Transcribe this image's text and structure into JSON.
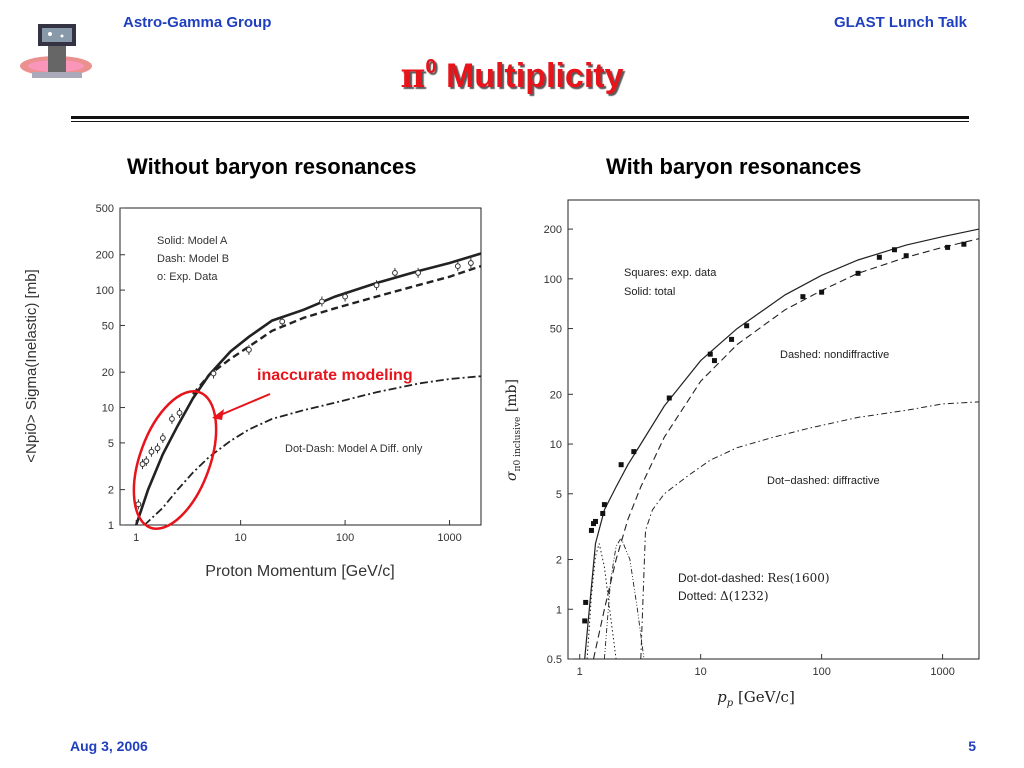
{
  "header": {
    "left": "Astro-Gamma Group",
    "right": "GLAST Lunch Talk"
  },
  "title": {
    "symbol": "π",
    "sup": "0",
    "text": " Multiplicity"
  },
  "subtitles": {
    "left": "Without baryon resonances",
    "right": "With baryon resonances"
  },
  "footer": {
    "date": "Aug 3, 2006",
    "page": "5"
  },
  "annotation": "inaccurate modeling",
  "colors": {
    "header": "#1f3fbf",
    "title": "#e8141b",
    "highlight": "#e8141b"
  },
  "chart_data": [
    {
      "type": "line",
      "xlabel": "Proton Momentum [GeV/c]",
      "ylabel": "<Npi0> Sigma(Inelastic) [mb]",
      "xscale": "log",
      "yscale": "log",
      "xlim": [
        0.7,
        2000
      ],
      "ylim": [
        1,
        500
      ],
      "xticks": [
        1,
        10,
        100,
        1000
      ],
      "xtick_labels": [
        "1",
        "10",
        "100",
        "1000"
      ],
      "yticks": [
        1,
        2,
        5,
        10,
        20,
        50,
        100,
        200,
        500
      ],
      "ytick_labels": [
        "1",
        "2",
        "5",
        "10",
        "20",
        "50",
        "100",
        "200",
        "500"
      ],
      "legend": [
        "Solid: Model A",
        "Dash: Model B",
        "o: Exp. Data"
      ],
      "curve_label": "Dot-Dash: Model A Diff. only",
      "series": [
        {
          "name": "Model A",
          "style": "solid",
          "x": [
            1.0,
            1.3,
            1.8,
            2.5,
            3.5,
            5,
            8,
            12,
            20,
            40,
            80,
            200,
            500,
            1000,
            2000
          ],
          "y": [
            1.0,
            2.0,
            4.0,
            7.0,
            12.0,
            19,
            30,
            40,
            55,
            68,
            88,
            115,
            145,
            170,
            205
          ]
        },
        {
          "name": "Model B",
          "style": "dashed",
          "x": [
            3.5,
            5,
            8,
            12,
            20,
            40,
            80,
            200,
            500,
            1000,
            2000
          ],
          "y": [
            13,
            19,
            26,
            33,
            45,
            58,
            70,
            88,
            110,
            130,
            160
          ]
        },
        {
          "name": "Model A Diff. only",
          "style": "dashdot",
          "x": [
            1.2,
            1.8,
            2.5,
            3.5,
            5,
            8,
            12,
            20,
            40,
            80,
            200,
            500,
            1000,
            2000
          ],
          "y": [
            1.0,
            1.4,
            2.0,
            2.8,
            3.8,
            5.2,
            6.5,
            8.0,
            9.5,
            11.0,
            13.5,
            16.0,
            17.5,
            18.5
          ]
        },
        {
          "name": "Exp. Data",
          "style": "markers",
          "x": [
            1.05,
            1.15,
            1.25,
            1.4,
            1.6,
            1.8,
            2.2,
            2.6,
            5.5,
            12,
            25,
            60,
            100,
            200,
            300,
            500,
            1200,
            1600
          ],
          "y": [
            1.5,
            3.3,
            3.5,
            4.2,
            4.5,
            5.5,
            8.0,
            9.0,
            19.5,
            31.0,
            54.0,
            80.0,
            88.0,
            110.0,
            140.0,
            140.0,
            160.0,
            170.0
          ]
        }
      ]
    },
    {
      "type": "line",
      "xlabel_main": "p",
      "xlabel_sub": "p",
      "xlabel_unit": " [GeV/c]",
      "ylabel_main": "σ",
      "ylabel_sub": "π0 inclusive",
      "ylabel_unit": " [mb]",
      "xscale": "log",
      "yscale": "log",
      "xlim": [
        0.8,
        2000
      ],
      "ylim": [
        0.5,
        300
      ],
      "xticks": [
        1,
        10,
        100,
        1000
      ],
      "xtick_labels": [
        "1",
        "10",
        "100",
        "1000"
      ],
      "yticks": [
        0.5,
        1,
        2,
        5,
        10,
        20,
        50,
        100,
        200
      ],
      "ytick_labels": [
        "0.5",
        "1",
        "2",
        "5",
        "10",
        "20",
        "50",
        "100",
        "200"
      ],
      "legend": [
        "Squares: exp. data",
        "Solid: total"
      ],
      "labels": {
        "dashed": "Dashed: nondiffractive",
        "dotdashed": "Dot−dashed: diffractive",
        "dotdotdashed_prefix": "Dot-dot-dashed: ",
        "dotdotdashed_value": "Res(1600)",
        "dotted_prefix": "Dotted: ",
        "dotted_value": "Δ(1232)"
      },
      "series": [
        {
          "name": "total",
          "style": "solid",
          "x": [
            1.1,
            1.2,
            1.35,
            1.6,
            2.0,
            2.5,
            3.2,
            5,
            10,
            20,
            50,
            100,
            200,
            500,
            1000,
            2000
          ],
          "y": [
            0.5,
            1.0,
            2.5,
            4.0,
            5.5,
            7.5,
            10.0,
            17.0,
            32.0,
            50.0,
            80.0,
            105.0,
            130.0,
            160.0,
            180.0,
            200.0
          ]
        },
        {
          "name": "nondiffractive",
          "style": "dashed",
          "x": [
            1.3,
            1.6,
            2.0,
            2.5,
            3.2,
            5,
            10,
            20,
            50,
            100,
            200,
            500,
            1000,
            2000
          ],
          "y": [
            0.5,
            1.0,
            2.0,
            3.5,
            5.5,
            11.0,
            24.0,
            40.0,
            65.0,
            85.0,
            108.0,
            135.0,
            155.0,
            175.0
          ]
        },
        {
          "name": "diffractive",
          "style": "dotdashed",
          "x": [
            3.2,
            3.5,
            4.0,
            5,
            8,
            12,
            20,
            40,
            80,
            200,
            500,
            1000,
            2000
          ],
          "y": [
            0.5,
            3.0,
            4.0,
            5.0,
            6.5,
            8.0,
            9.5,
            11.0,
            12.5,
            14.5,
            16.0,
            17.5,
            18.0
          ]
        },
        {
          "name": "Res(1600)",
          "style": "dotdotdashed",
          "x": [
            1.6,
            1.8,
            2.0,
            2.2,
            2.6,
            3.0,
            3.4
          ],
          "y": [
            0.5,
            1.5,
            2.4,
            2.7,
            2.0,
            1.0,
            0.5
          ]
        },
        {
          "name": "Δ(1232)",
          "style": "dotted",
          "x": [
            1.15,
            1.25,
            1.35,
            1.45,
            1.6,
            1.8,
            2.0
          ],
          "y": [
            0.5,
            1.2,
            2.1,
            2.5,
            1.8,
            0.9,
            0.5
          ]
        },
        {
          "name": "exp. data",
          "style": "markers",
          "x": [
            1.1,
            1.12,
            1.25,
            1.3,
            1.35,
            1.55,
            1.6,
            2.2,
            2.8,
            5.5,
            12,
            13,
            18,
            24,
            70,
            100,
            200,
            300,
            400,
            500,
            1100,
            1500
          ],
          "y": [
            0.85,
            1.1,
            3.0,
            3.3,
            3.4,
            3.8,
            4.3,
            7.5,
            9.0,
            19.0,
            35.0,
            32.0,
            43.0,
            52.0,
            78.0,
            83.0,
            108.0,
            135.0,
            150.0,
            138.0,
            155.0,
            162.0
          ]
        }
      ]
    }
  ]
}
